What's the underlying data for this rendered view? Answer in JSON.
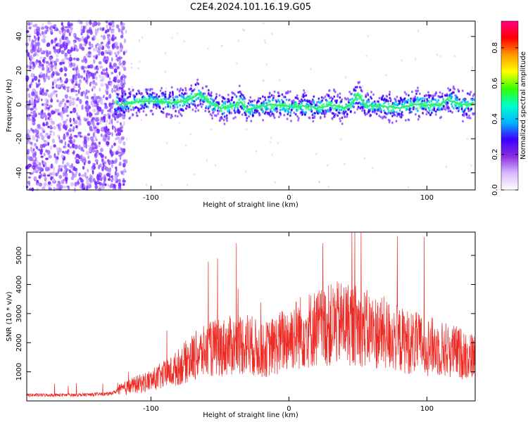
{
  "title": "C2E4.2024.101.16.19.G05",
  "colors": {
    "snr_line": "#ee2a24",
    "axis": "#000000",
    "speck": "#7b2cff"
  },
  "colormap": [
    "#ffffff",
    "#d9b8ff",
    "#8a2be2",
    "#3b00ff",
    "#00b7ff",
    "#00ffcc",
    "#36ff00",
    "#ffff00",
    "#ff9900",
    "#ff0000",
    "#ff0080"
  ],
  "chart_data": [
    {
      "type": "heatmap",
      "xlabel": "Height of straight line (km)",
      "ylabel": "Frequency (Hz)",
      "xlim": [
        -190,
        135
      ],
      "ylim": [
        -50,
        49
      ],
      "xticks": [
        -100,
        0,
        100
      ],
      "yticks": [
        -40,
        -20,
        0,
        20,
        40
      ],
      "colorbar": {
        "label": "Normalized spectral amplitude",
        "range": [
          0,
          0.95
        ],
        "ticks": [
          "0.0",
          "0.2",
          "0.4",
          "0.6",
          "0.8"
        ]
      },
      "ridge": {
        "x": [
          -125,
          -115,
          -105,
          -95,
          -85,
          -75,
          -65,
          -60,
          -55,
          -48,
          -40,
          -35,
          -30,
          -22,
          -10,
          0,
          10,
          20,
          30,
          40,
          45,
          50,
          55,
          60,
          70,
          80,
          90,
          100,
          110,
          115,
          125,
          135
        ],
        "y": [
          0,
          1,
          2,
          2,
          1,
          2,
          6,
          3,
          0,
          -2,
          -1,
          2,
          -3,
          -1,
          0,
          -1,
          -1,
          -2,
          0,
          -2,
          0,
          6,
          0,
          -1,
          -1,
          -2,
          0,
          0,
          0,
          3,
          0,
          0
        ]
      }
    },
    {
      "type": "line",
      "xlabel": "Height of straight line (km)",
      "ylabel": "SNR (10 * v/v)",
      "xlim": [
        -190,
        135
      ],
      "ylim": [
        0,
        5800
      ],
      "xticks": [
        -100,
        0,
        100
      ],
      "yticks": [
        1000,
        2000,
        3000,
        4000,
        5000
      ],
      "series": [
        {
          "x": [
            -190,
            -170,
            -150,
            -130,
            -115,
            -100,
            -85,
            -70,
            -55,
            -40,
            -30,
            -20,
            -10,
            0,
            10,
            20,
            30,
            40,
            50,
            60,
            70,
            80,
            90,
            100,
            110,
            120,
            135
          ],
          "y": [
            200,
            200,
            210,
            240,
            500,
            700,
            1000,
            1500,
            1800,
            1900,
            2000,
            1700,
            1900,
            2200,
            2400,
            2500,
            2600,
            2700,
            2600,
            2400,
            2300,
            2100,
            2000,
            1900,
            1800,
            1700,
            1500
          ]
        }
      ]
    }
  ]
}
